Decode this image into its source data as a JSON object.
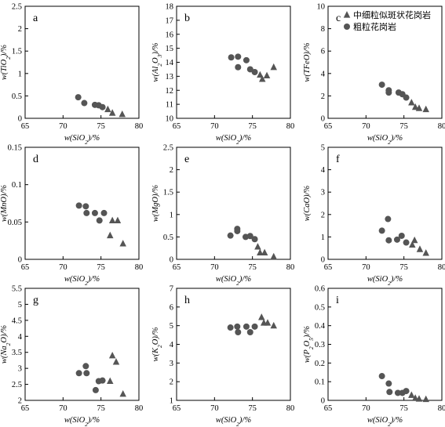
{
  "chart_data": [
    {
      "type": "scatter",
      "panel_label": "a",
      "xlabel": "w(SiO₂)/%",
      "ylabel": "w(TiO₂)/%",
      "xlim": [
        65,
        80
      ],
      "ylim": [
        0,
        2.5
      ],
      "xticks": [
        65,
        70,
        75,
        80
      ],
      "yticks": [
        0,
        0.5,
        1,
        1.5,
        2,
        2.5
      ],
      "ytick_labels": [
        "0",
        "0.5",
        "1",
        "1.5",
        "2",
        "2.5"
      ],
      "series": [
        {
          "name": "中细粒似斑状花岗岩",
          "marker": "triangle",
          "points": [
            [
              75.9,
              0.2
            ],
            [
              76.5,
              0.12
            ],
            [
              77.8,
              0.09
            ]
          ]
        },
        {
          "name": "粗粒花岗岩",
          "marker": "circle",
          "points": [
            [
              72.0,
              0.47
            ],
            [
              72.8,
              0.34
            ],
            [
              74.2,
              0.3
            ],
            [
              74.7,
              0.29
            ],
            [
              75.2,
              0.25
            ]
          ]
        }
      ]
    },
    {
      "type": "scatter",
      "panel_label": "b",
      "xlabel": "w(SiO₂)/%",
      "ylabel": "w(Al₂O₃)/%",
      "xlim": [
        65,
        80
      ],
      "ylim": [
        10,
        18
      ],
      "xticks": [
        65,
        70,
        75,
        80
      ],
      "yticks": [
        10,
        11,
        12,
        13,
        14,
        15,
        16,
        17,
        18
      ],
      "ytick_labels": [
        "10",
        "11",
        "12",
        "13",
        "14",
        "15",
        "16",
        "17",
        "18"
      ],
      "series": [
        {
          "name": "中细粒似斑状花岗岩",
          "marker": "triangle",
          "points": [
            [
              76.0,
              13.1
            ],
            [
              76.3,
              12.8
            ],
            [
              76.9,
              13.05
            ],
            [
              77.8,
              13.65
            ]
          ]
        },
        {
          "name": "粗粒花岗岩",
          "marker": "circle",
          "points": [
            [
              72.2,
              14.35
            ],
            [
              73.1,
              14.4
            ],
            [
              73.1,
              13.65
            ],
            [
              74.2,
              14.15
            ],
            [
              74.7,
              13.5
            ],
            [
              75.3,
              13.3
            ]
          ]
        }
      ]
    },
    {
      "type": "scatter",
      "panel_label": "c",
      "xlabel": "w(SiO₂)/%",
      "ylabel": "w(TFeO)/%",
      "xlim": [
        65,
        80
      ],
      "ylim": [
        0,
        10
      ],
      "xticks": [
        65,
        70,
        75,
        80
      ],
      "yticks": [
        0,
        2,
        4,
        6,
        8,
        10
      ],
      "ytick_labels": [
        "0",
        "2",
        "4",
        "6",
        "8",
        "10"
      ],
      "series": [
        {
          "name": "中细粒似斑状花岗岩",
          "marker": "triangle",
          "points": [
            [
              76.0,
              1.4
            ],
            [
              76.5,
              1.0
            ],
            [
              77.0,
              0.9
            ],
            [
              77.9,
              0.8
            ]
          ]
        },
        {
          "name": "粗粒花岗岩",
          "marker": "circle",
          "points": [
            [
              72.1,
              3.0
            ],
            [
              73.0,
              2.5
            ],
            [
              73.0,
              2.3
            ],
            [
              74.3,
              2.3
            ],
            [
              74.8,
              2.15
            ],
            [
              75.3,
              1.85
            ]
          ]
        }
      ]
    },
    {
      "type": "scatter",
      "panel_label": "d",
      "xlabel": "w(SiO₂)/%",
      "ylabel": "w(MnO)/%",
      "xlim": [
        65,
        80
      ],
      "ylim": [
        0,
        0.15
      ],
      "xticks": [
        65,
        70,
        75,
        80
      ],
      "yticks": [
        0,
        0.05,
        0.1,
        0.15
      ],
      "ytick_labels": [
        "0",
        "0.05",
        "0.1",
        "0.15"
      ],
      "series": [
        {
          "name": "中细粒似斑状花岗岩",
          "marker": "triangle",
          "points": [
            [
              76.2,
              0.032
            ],
            [
              76.5,
              0.052
            ],
            [
              77.2,
              0.052
            ],
            [
              77.9,
              0.021
            ]
          ]
        },
        {
          "name": "粗粒花岗岩",
          "marker": "circle",
          "points": [
            [
              72.1,
              0.072
            ],
            [
              73.0,
              0.071
            ],
            [
              73.1,
              0.062
            ],
            [
              74.2,
              0.062
            ],
            [
              74.8,
              0.052
            ],
            [
              75.4,
              0.062
            ]
          ]
        }
      ]
    },
    {
      "type": "scatter",
      "panel_label": "e",
      "xlabel": "w(SiO₂)/%",
      "ylabel": "w(MgO)/%",
      "xlim": [
        65,
        80
      ],
      "ylim": [
        0,
        2.5
      ],
      "xticks": [
        65,
        70,
        75,
        80
      ],
      "yticks": [
        0,
        0.5,
        1,
        1.5,
        2,
        2.5
      ],
      "ytick_labels": [
        "0",
        "0.5",
        "1",
        "1.5",
        "2",
        "2.5"
      ],
      "series": [
        {
          "name": "中细粒似斑状花岗岩",
          "marker": "triangle",
          "points": [
            [
              75.7,
              0.28
            ],
            [
              76.0,
              0.15
            ],
            [
              76.6,
              0.15
            ],
            [
              77.8,
              0.06
            ]
          ]
        },
        {
          "name": "粗粒花岗岩",
          "marker": "circle",
          "points": [
            [
              72.1,
              0.53
            ],
            [
              73.0,
              0.68
            ],
            [
              73.0,
              0.63
            ],
            [
              74.1,
              0.5
            ],
            [
              74.7,
              0.52
            ],
            [
              75.3,
              0.45
            ]
          ]
        }
      ]
    },
    {
      "type": "scatter",
      "panel_label": "f",
      "xlabel": "w(SiO₂)/%",
      "ylabel": "w(CaO)/%",
      "xlim": [
        65,
        80
      ],
      "ylim": [
        0,
        5
      ],
      "xticks": [
        65,
        70,
        75,
        80
      ],
      "yticks": [
        0,
        1,
        2,
        3,
        4,
        5
      ],
      "ytick_labels": [
        "0",
        "1",
        "2",
        "3",
        "4",
        "5"
      ],
      "series": [
        {
          "name": "中细粒似斑状花岗岩",
          "marker": "triangle",
          "points": [
            [
              76.1,
              0.65
            ],
            [
              76.4,
              0.85
            ],
            [
              77.1,
              0.45
            ],
            [
              77.9,
              0.28
            ]
          ]
        },
        {
          "name": "粗粒花岗岩",
          "marker": "circle",
          "points": [
            [
              72.1,
              1.28
            ],
            [
              72.9,
              1.8
            ],
            [
              73.0,
              0.85
            ],
            [
              74.1,
              0.88
            ],
            [
              74.7,
              1.05
            ],
            [
              75.3,
              0.75
            ]
          ]
        }
      ]
    },
    {
      "type": "scatter",
      "panel_label": "g",
      "xlabel": "w(SiO₂)/%",
      "ylabel": "w(Na₂O)/%",
      "xlim": [
        65,
        80
      ],
      "ylim": [
        2,
        5.5
      ],
      "xticks": [
        65,
        70,
        75,
        80
      ],
      "yticks": [
        2,
        2.5,
        3,
        3.5,
        4,
        4.5,
        5,
        5.5
      ],
      "ytick_labels": [
        "2",
        "2.5",
        "3",
        "3.5",
        "4",
        "4.5",
        "5",
        "5.5"
      ],
      "series": [
        {
          "name": "中细粒似斑状花岗岩",
          "marker": "triangle",
          "points": [
            [
              76.2,
              2.6
            ],
            [
              76.5,
              3.4
            ],
            [
              77.0,
              3.2
            ],
            [
              77.9,
              2.2
            ]
          ]
        },
        {
          "name": "粗粒花岗岩",
          "marker": "circle",
          "points": [
            [
              72.1,
              2.85
            ],
            [
              73.0,
              3.07
            ],
            [
              73.1,
              2.85
            ],
            [
              74.3,
              2.32
            ],
            [
              74.7,
              2.6
            ],
            [
              75.2,
              2.62
            ]
          ]
        }
      ]
    },
    {
      "type": "scatter",
      "panel_label": "h",
      "xlabel": "w(SiO₂)/%",
      "ylabel": "w(K₂O)/%",
      "xlim": [
        65,
        80
      ],
      "ylim": [
        1,
        7
      ],
      "xticks": [
        65,
        70,
        75,
        80
      ],
      "yticks": [
        1,
        2,
        3,
        4,
        5,
        6,
        7
      ],
      "ytick_labels": [
        "1",
        "2",
        "3",
        "4",
        "5",
        "6",
        "7"
      ],
      "series": [
        {
          "name": "中细粒似斑状花岗岩",
          "marker": "triangle",
          "points": [
            [
              76.2,
              5.45
            ],
            [
              76.5,
              5.15
            ],
            [
              77.0,
              5.15
            ],
            [
              77.8,
              5.0
            ]
          ]
        },
        {
          "name": "粗粒花岗岩",
          "marker": "circle",
          "points": [
            [
              72.1,
              4.9
            ],
            [
              73.0,
              4.95
            ],
            [
              73.1,
              4.65
            ],
            [
              74.2,
              4.95
            ],
            [
              74.7,
              4.65
            ],
            [
              75.3,
              4.95
            ]
          ]
        }
      ]
    },
    {
      "type": "scatter",
      "panel_label": "i",
      "xlabel": "w(SiO₂)/%",
      "ylabel": "w(P₂O₅)/%",
      "xlim": [
        65,
        80
      ],
      "ylim": [
        0,
        0.6
      ],
      "xticks": [
        65,
        70,
        75,
        80
      ],
      "yticks": [
        0,
        0.1,
        0.2,
        0.3,
        0.4,
        0.5,
        0.6
      ],
      "ytick_labels": [
        "0",
        "0.1",
        "0.2",
        "0.3",
        "0.4",
        "0.5",
        "0.6"
      ],
      "series": [
        {
          "name": "中细粒似斑状花岗岩",
          "marker": "triangle",
          "points": [
            [
              76.0,
              0.028
            ],
            [
              76.5,
              0.012
            ],
            [
              77.0,
              0.008
            ],
            [
              77.9,
              0.006
            ]
          ]
        },
        {
          "name": "粗粒花岗岩",
          "marker": "circle",
          "points": [
            [
              72.1,
              0.13
            ],
            [
              73.0,
              0.09
            ],
            [
              73.1,
              0.045
            ],
            [
              74.2,
              0.04
            ],
            [
              74.8,
              0.04
            ],
            [
              75.3,
              0.05
            ]
          ]
        }
      ]
    }
  ],
  "legend": {
    "entries": [
      {
        "label": "中细粒似斑状花岗岩",
        "marker": "triangle"
      },
      {
        "label": "粗粒花岗岩",
        "marker": "circle"
      }
    ]
  },
  "colors": {
    "marker": "#555555",
    "axis": "#000000"
  }
}
